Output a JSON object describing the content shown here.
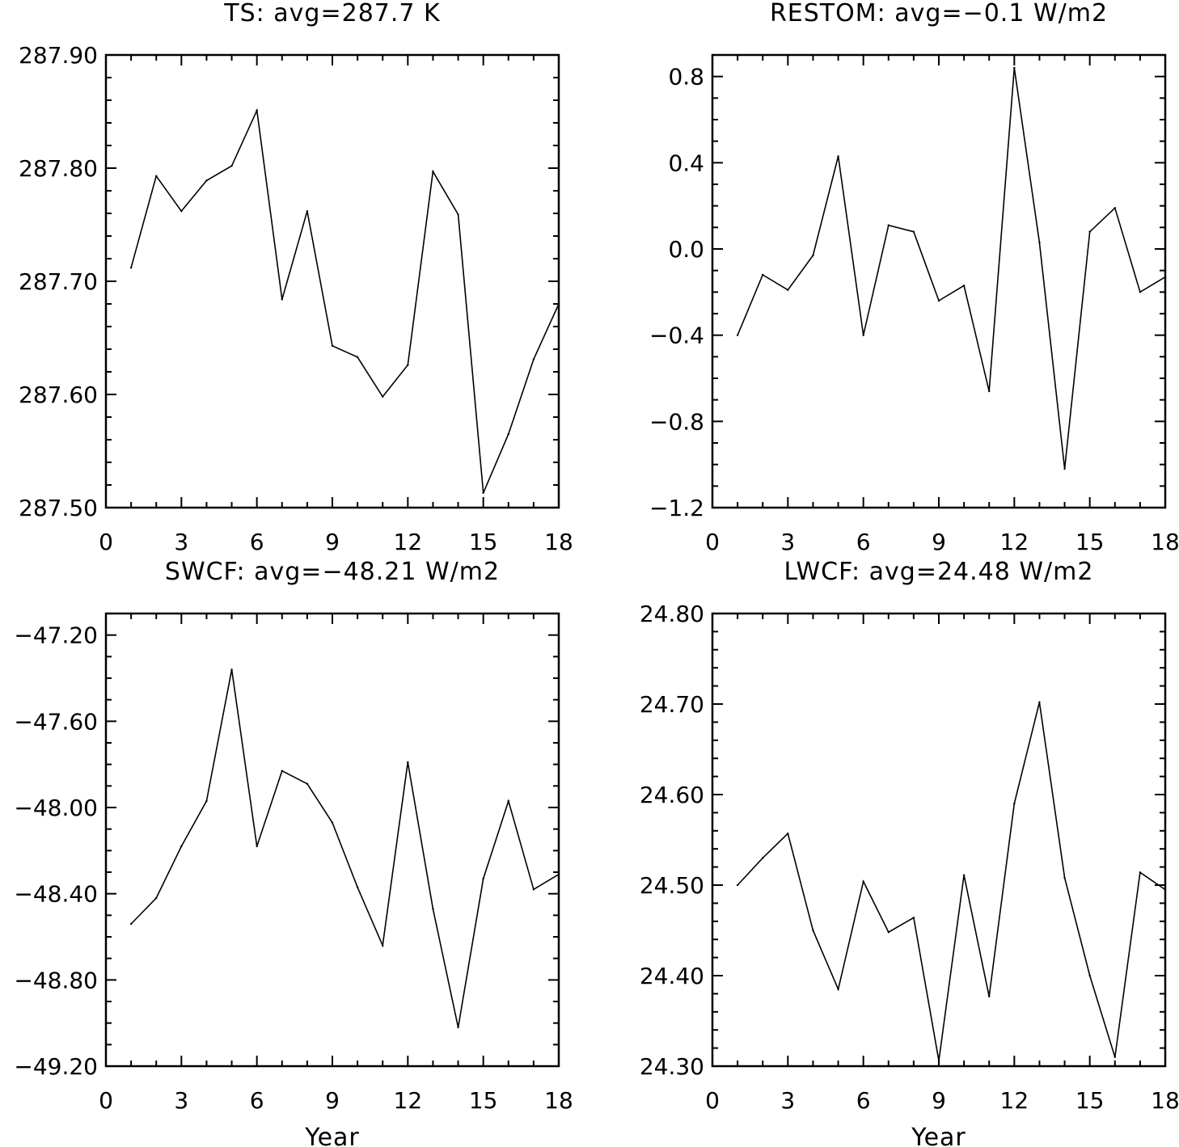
{
  "chart_data": [
    {
      "type": "line",
      "title": "TS: avg=287.7 K",
      "xlabel": "",
      "ylabel": "",
      "xlim": [
        0,
        18
      ],
      "ylim": [
        287.5,
        287.9
      ],
      "xticks": [
        0,
        3,
        6,
        9,
        12,
        15,
        18
      ],
      "xtick_labels": [
        "0",
        "3",
        "6",
        "9",
        "12",
        "15",
        "18"
      ],
      "yticks": [
        287.5,
        287.6,
        287.7,
        287.8,
        287.9
      ],
      "ytick_labels": [
        "287.50",
        "287.60",
        "287.70",
        "287.80",
        "287.90"
      ],
      "yminor": 0.02,
      "x": [
        1,
        2,
        3,
        4,
        5,
        6,
        7,
        8,
        9,
        10,
        11,
        12,
        13,
        14,
        15,
        16,
        17,
        18
      ],
      "values": [
        287.712,
        287.793,
        287.762,
        287.789,
        287.802,
        287.851,
        287.684,
        287.762,
        287.643,
        287.633,
        287.598,
        287.626,
        287.797,
        287.759,
        287.513,
        287.565,
        287.631,
        287.68
      ],
      "grid": false
    },
    {
      "type": "line",
      "title": "RESTOM: avg=−0.1 W/m2",
      "xlabel": "",
      "ylabel": "",
      "xlim": [
        0,
        18
      ],
      "ylim": [
        -1.2,
        0.9
      ],
      "xticks": [
        0,
        3,
        6,
        9,
        12,
        15,
        18
      ],
      "xtick_labels": [
        "0",
        "3",
        "6",
        "9",
        "12",
        "15",
        "18"
      ],
      "yticks": [
        -1.2,
        -0.8,
        -0.4,
        0.0,
        0.4,
        0.8
      ],
      "ytick_labels": [
        "−1.2",
        "−0.8",
        "−0.4",
        "0.0",
        "0.4",
        "0.8"
      ],
      "yminor": 0.1,
      "x": [
        1,
        2,
        3,
        4,
        5,
        6,
        7,
        8,
        9,
        10,
        11,
        12,
        13,
        14,
        15,
        16,
        17,
        18
      ],
      "values": [
        -0.4,
        -0.12,
        -0.19,
        -0.03,
        0.43,
        -0.4,
        0.11,
        0.08,
        -0.24,
        -0.17,
        -0.66,
        0.84,
        0.03,
        -1.02,
        0.08,
        0.19,
        -0.2,
        -0.13
      ],
      "grid": false
    },
    {
      "type": "line",
      "title": "SWCF: avg=−48.21 W/m2",
      "xlabel": "Year",
      "ylabel": "",
      "xlim": [
        0,
        18
      ],
      "ylim": [
        -49.2,
        -47.1
      ],
      "xticks": [
        0,
        3,
        6,
        9,
        12,
        15,
        18
      ],
      "xtick_labels": [
        "0",
        "3",
        "6",
        "9",
        "12",
        "15",
        "18"
      ],
      "yticks": [
        -49.2,
        -48.8,
        -48.4,
        -48.0,
        -47.6,
        -47.2
      ],
      "ytick_labels": [
        "−49.20",
        "−48.80",
        "−48.40",
        "−48.00",
        "−47.60",
        "−47.20"
      ],
      "yminor": 0.1,
      "x": [
        1,
        2,
        3,
        4,
        5,
        6,
        7,
        8,
        9,
        10,
        11,
        12,
        13,
        14,
        15,
        16,
        17,
        18
      ],
      "values": [
        -48.54,
        -48.42,
        -48.18,
        -47.97,
        -47.36,
        -48.18,
        -47.83,
        -47.89,
        -48.07,
        -48.37,
        -48.64,
        -47.79,
        -48.47,
        -49.02,
        -48.33,
        -47.97,
        -48.38,
        -48.31
      ],
      "grid": false
    },
    {
      "type": "line",
      "title": "LWCF: avg=24.48 W/m2",
      "xlabel": "Year",
      "ylabel": "",
      "xlim": [
        0,
        18
      ],
      "ylim": [
        24.3,
        24.8
      ],
      "xticks": [
        0,
        3,
        6,
        9,
        12,
        15,
        18
      ],
      "xtick_labels": [
        "0",
        "3",
        "6",
        "9",
        "12",
        "15",
        "18"
      ],
      "yticks": [
        24.3,
        24.4,
        24.5,
        24.6,
        24.7,
        24.8
      ],
      "ytick_labels": [
        "24.30",
        "24.40",
        "24.50",
        "24.60",
        "24.70",
        "24.80"
      ],
      "yminor": 0.02,
      "x": [
        1,
        2,
        3,
        4,
        5,
        6,
        7,
        8,
        9,
        10,
        11,
        12,
        13,
        14,
        15,
        16,
        17,
        18
      ],
      "values": [
        24.5,
        24.53,
        24.557,
        24.45,
        24.385,
        24.504,
        24.448,
        24.464,
        24.306,
        24.511,
        24.377,
        24.59,
        24.702,
        24.508,
        24.4,
        24.31,
        24.514,
        24.495
      ],
      "grid": false
    }
  ]
}
